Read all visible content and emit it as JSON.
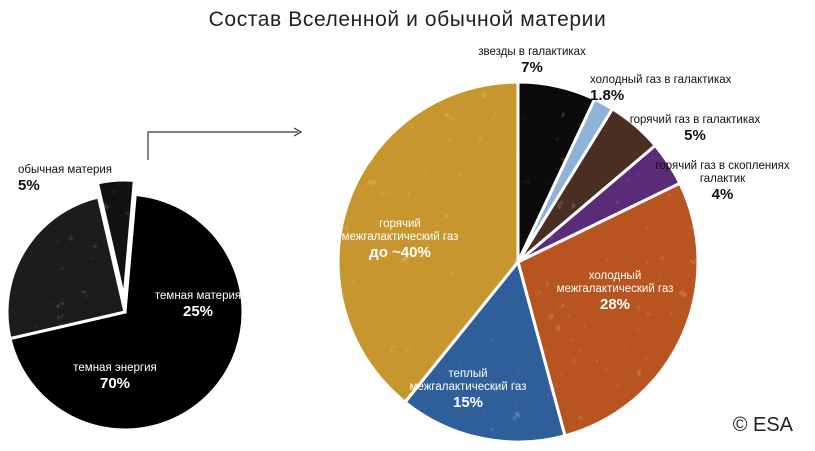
{
  "title": "Состав Вселенной и обычной материи",
  "credit": "© ESA",
  "chart_data": [
    {
      "type": "pie",
      "title": "",
      "slices": [
        {
          "label": "темная энергия",
          "value_label": "70%",
          "value": 70,
          "color": "#000000"
        },
        {
          "label": "темная материя",
          "value_label": "25%",
          "value": 25,
          "color": "#1c1c1c"
        },
        {
          "label": "обычная материя",
          "value_label": "5%",
          "value": 5,
          "color": "#111111"
        }
      ],
      "exploded": "обычная материя"
    },
    {
      "type": "pie",
      "title": "",
      "slices": [
        {
          "label": "звезды в галактиках",
          "value_label": "7%",
          "value": 7,
          "color": "#0a0a0a"
        },
        {
          "label": "холодный газ в галактиках",
          "value_label": "1.8%",
          "value": 1.8,
          "color": "#8fb2d8"
        },
        {
          "label": "горячий газ в галактиках",
          "value_label": "5%",
          "value": 5,
          "color": "#4a2e22"
        },
        {
          "label": "горячий газ в скоплениях галактик",
          "value_label": "4%",
          "value": 4,
          "color": "#5a2c78"
        },
        {
          "label": "холодный межгалактический газ",
          "value_label": "28%",
          "value": 28,
          "color": "#b85420"
        },
        {
          "label": "теплый межгалактический газ",
          "value_label": "15%",
          "value": 15,
          "color": "#2e5f9a"
        },
        {
          "label": "горячий межгалактический газ",
          "value_label": "до ~40%",
          "value": 39.2,
          "color": "#c8962e"
        }
      ]
    }
  ]
}
